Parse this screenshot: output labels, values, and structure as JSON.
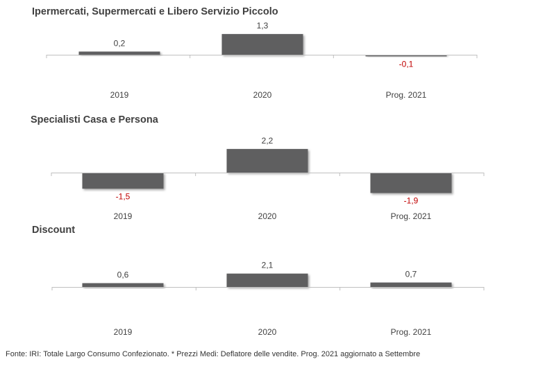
{
  "chart_data": [
    {
      "type": "bar",
      "title": "Ipermercati,  Supermercati e Libero Servizio Piccolo",
      "categories": [
        "2019",
        "2020",
        "Prog. 2021"
      ],
      "values": [
        0.2,
        1.3,
        -0.1
      ],
      "labels": [
        "0,2",
        "1,3",
        "-0,1"
      ]
    },
    {
      "type": "bar",
      "title": "Specialisti  Casa e Persona",
      "categories": [
        "2019",
        "2020",
        "Prog. 2021"
      ],
      "values": [
        -1.5,
        2.2,
        -1.9
      ],
      "labels": [
        "-1,5",
        "2,2",
        "-1,9"
      ]
    },
    {
      "type": "bar",
      "title": "Discount",
      "categories": [
        "2019",
        "2020",
        "Prog. 2021"
      ],
      "values": [
        0.6,
        2.1,
        0.7
      ],
      "labels": [
        "0,6",
        "2,1",
        "0,7"
      ]
    }
  ],
  "colors": {
    "bar": "#5f5f61",
    "positive_label": "#404040",
    "negative_label": "#c00000",
    "axis": "#bfbfbf"
  },
  "footnote": "Fonte: IRI: Totale Largo Consumo Confezionato.  * Prezzi  Medi: Deflatore delle vendite.   Prog. 2021 aggiornato a Settembre"
}
